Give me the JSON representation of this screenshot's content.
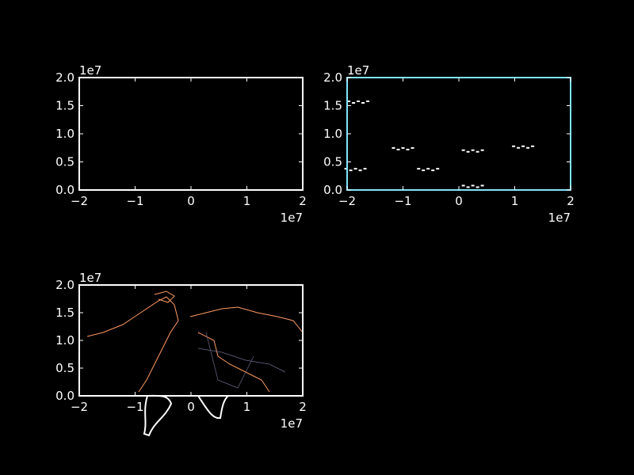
{
  "figure": {
    "background": "#000000",
    "foreground": "#ffffff"
  },
  "chart_data": [
    {
      "type": "scatter",
      "panel": "top-left",
      "title": "",
      "xlabel": "",
      "ylabel": "",
      "xlim": [
        -2,
        2
      ],
      "ylim": [
        0,
        2
      ],
      "xticks": [
        "−2",
        "−1",
        "0",
        "1",
        "2"
      ],
      "yticks": [
        "0.0",
        "0.5",
        "1.0",
        "1.5",
        "2.0"
      ],
      "x_offset": "1e7",
      "y_offset": "1e7",
      "frame_color": "#ffffff",
      "series": []
    },
    {
      "type": "scatter",
      "panel": "top-right",
      "title": "",
      "xlabel": "",
      "ylabel": "",
      "xlim": [
        -2,
        2
      ],
      "ylim": [
        0,
        2
      ],
      "xticks": [
        "−2",
        "−1",
        "0",
        "1",
        "2"
      ],
      "yticks": [
        "0.0",
        "0.5",
        "1.0",
        "1.5",
        "2.0"
      ],
      "x_offset": "1e7",
      "y_offset": "1e7",
      "frame_color": "#7fe5ff",
      "series": [
        {
          "x": [
            -1.8,
            -1.85,
            -1.0,
            -0.55,
            0.25,
            1.15,
            0.25
          ],
          "y": [
            1.55,
            0.35,
            0.72,
            0.35,
            0.68,
            0.75,
            0.05
          ]
        }
      ]
    },
    {
      "type": "scatter",
      "panel": "bottom-left",
      "title": "",
      "xlabel": "",
      "ylabel": "",
      "xlim": [
        -2,
        2
      ],
      "ylim": [
        0,
        2
      ],
      "xticks": [
        "−2",
        "−1",
        "0",
        "1",
        "2"
      ],
      "yticks": [
        "0.0",
        "0.5",
        "1.0",
        "1.5",
        "2.0"
      ],
      "x_offset": "1e7",
      "y_offset": "1e7",
      "frame_color": "#ffffff",
      "map_color": "#ff9a60",
      "series": []
    }
  ]
}
